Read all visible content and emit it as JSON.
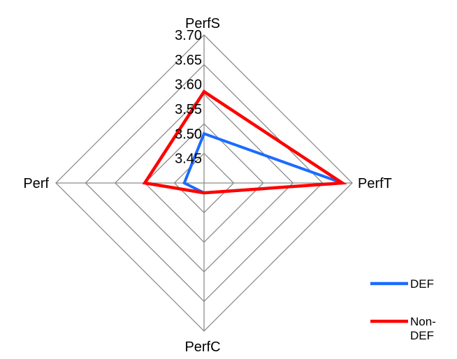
{
  "chart_data": {
    "type": "radar",
    "axes": [
      "PerfS",
      "PerfT",
      "PerfC",
      "Perf"
    ],
    "r_ticks": [
      "3.45",
      "3.50",
      "3.55",
      "3.60",
      "3.65",
      "3.70"
    ],
    "r_range": [
      3.4,
      3.7
    ],
    "series": [
      {
        "name": "DEF",
        "values": [
          3.5,
          3.68,
          3.42,
          3.44
        ],
        "color": "#1a6cff"
      },
      {
        "name": "Non-DEF",
        "values": [
          3.585,
          3.68,
          3.42,
          3.52
        ],
        "color": "#ff0000"
      }
    ],
    "legend": {
      "position": "bottom-right"
    },
    "grid": true,
    "gridline_color": "#8c8c8c"
  }
}
